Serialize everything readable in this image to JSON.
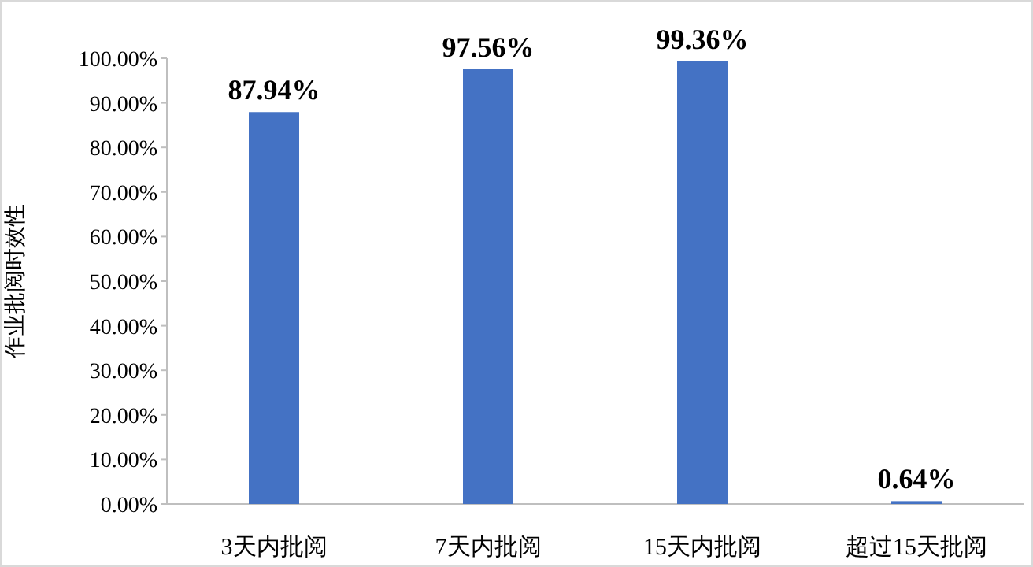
{
  "chart_data": {
    "type": "bar",
    "ylabel": "作业批阅时效性",
    "categories": [
      "3天内批阅",
      "7天内批阅",
      "15天内批阅",
      "超过15天批阅"
    ],
    "values": [
      87.94,
      97.56,
      99.36,
      0.64
    ],
    "value_labels": [
      "87.94%",
      "97.56%",
      "99.36%",
      "0.64%"
    ],
    "color": "#4472c4",
    "ylim": [
      0,
      100
    ],
    "yticks": [
      {
        "value": 0,
        "label": "0.00%"
      },
      {
        "value": 10,
        "label": "10.00%"
      },
      {
        "value": 20,
        "label": "20.00%"
      },
      {
        "value": 30,
        "label": "30.00%"
      },
      {
        "value": 40,
        "label": "40.00%"
      },
      {
        "value": 50,
        "label": "50.00%"
      },
      {
        "value": 60,
        "label": "60.00%"
      },
      {
        "value": 70,
        "label": "70.00%"
      },
      {
        "value": 80,
        "label": "80.00%"
      },
      {
        "value": 90,
        "label": "90.00%"
      },
      {
        "value": 100,
        "label": "100.00%"
      }
    ]
  }
}
